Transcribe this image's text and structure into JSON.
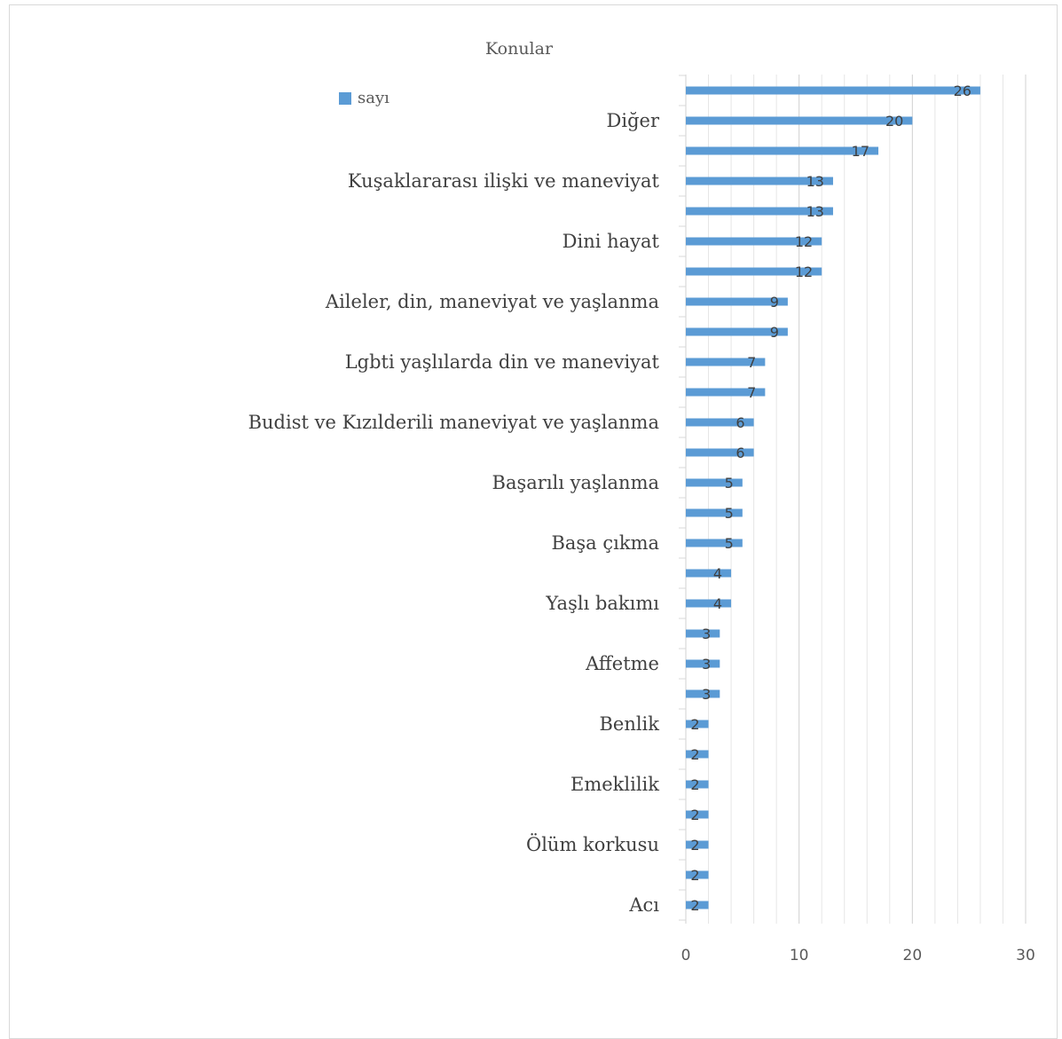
{
  "chart_data": {
    "type": "bar",
    "orientation": "horizontal",
    "title": "Konular",
    "xlabel": "",
    "ylabel": "",
    "xlim": [
      0,
      30
    ],
    "x_ticks": [
      "0",
      "10",
      "20",
      "30"
    ],
    "grid": true,
    "legend_position": "top-left",
    "categories": [
      "",
      "Diğer",
      "",
      "Kuşaklararası ilişki ve maneviyat",
      "",
      "Dini hayat",
      "",
      "Aileler, din, maneviyat ve yaşlanma",
      "",
      "Lgbti yaşlılarda din ve maneviyat",
      "",
      "Budist ve Kızılderili maneviyat ve yaşlanma",
      "",
      "Başarılı yaşlanma",
      "",
      "Başa çıkma",
      "",
      "Yaşlı bakımı",
      "",
      "Affetme",
      "",
      "Benlik",
      "",
      "Emeklilik",
      "",
      "Ölüm korkusu",
      "",
      "Acı"
    ],
    "series": [
      {
        "name": "sayı",
        "color": "#5b9bd5",
        "values": [
          26,
          20,
          17,
          13,
          13,
          12,
          12,
          9,
          9,
          7,
          7,
          6,
          6,
          5,
          5,
          5,
          4,
          4,
          3,
          3,
          3,
          2,
          2,
          2,
          2,
          2,
          2,
          2
        ]
      }
    ]
  }
}
